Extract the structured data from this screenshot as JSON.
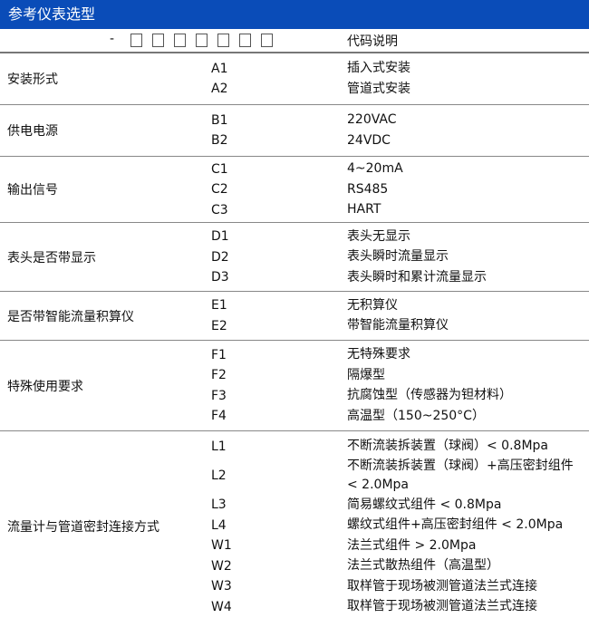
{
  "title": "参考仪表选型",
  "header": {
    "dash": "-",
    "box_count": 7,
    "desc_label": "代码说明"
  },
  "sections": [
    {
      "label": "安装形式",
      "rows": [
        {
          "code": "A1",
          "desc": "插入式安装"
        },
        {
          "code": "A2",
          "desc": "管道式安装"
        }
      ]
    },
    {
      "label": "供电电源",
      "rows": [
        {
          "code": "B1",
          "desc": "220VAC"
        },
        {
          "code": "B2",
          "desc": "24VDC"
        }
      ]
    },
    {
      "label": "输出信号",
      "rows": [
        {
          "code": "C1",
          "desc": "4~20mA"
        },
        {
          "code": "C2",
          "desc": "RS485"
        },
        {
          "code": "C3",
          "desc": "HART"
        }
      ]
    },
    {
      "label": "表头是否带显示",
      "rows": [
        {
          "code": "D1",
          "desc": "表头无显示"
        },
        {
          "code": "D2",
          "desc": "表头瞬时流量显示"
        },
        {
          "code": "D3",
          "desc": "表头瞬时和累计流量显示"
        }
      ]
    },
    {
      "label": "是否带智能流量积算仪",
      "rows": [
        {
          "code": "E1",
          "desc": "无积算仪"
        },
        {
          "code": "E2",
          "desc": "带智能流量积算仪"
        }
      ]
    },
    {
      "label": "特殊使用要求",
      "rows": [
        {
          "code": "F1",
          "desc": "无特殊要求"
        },
        {
          "code": "F2",
          "desc": "隔爆型"
        },
        {
          "code": "F3",
          "desc": "抗腐蚀型（传感器为钽材料）"
        },
        {
          "code": "F4",
          "desc": "高温型（150~250°C）"
        }
      ]
    },
    {
      "label": "流量计与管道密封连接方式",
      "rows": [
        {
          "code": "L1",
          "desc": "不断流装拆装置（球阀）< 0.8Mpa"
        },
        {
          "code": "L2",
          "desc": "不断流装拆装置（球阀）+高压密封组件 < 2.0Mpa"
        },
        {
          "code": "L3",
          "desc": "简易螺纹式组件 < 0.8Mpa"
        },
        {
          "code": "L4",
          "desc": "螺纹式组件+高压密封组件 < 2.0Mpa"
        },
        {
          "code": "W1",
          "desc": "法兰式组件 > 2.0Mpa"
        },
        {
          "code": "W2",
          "desc": "法兰式散热组件（高温型）"
        },
        {
          "code": "W3",
          "desc": "取样管于现场被测管道法兰式连接"
        },
        {
          "code": "W4",
          "desc": "取样管于现场被测管道法兰式连接"
        }
      ]
    }
  ]
}
